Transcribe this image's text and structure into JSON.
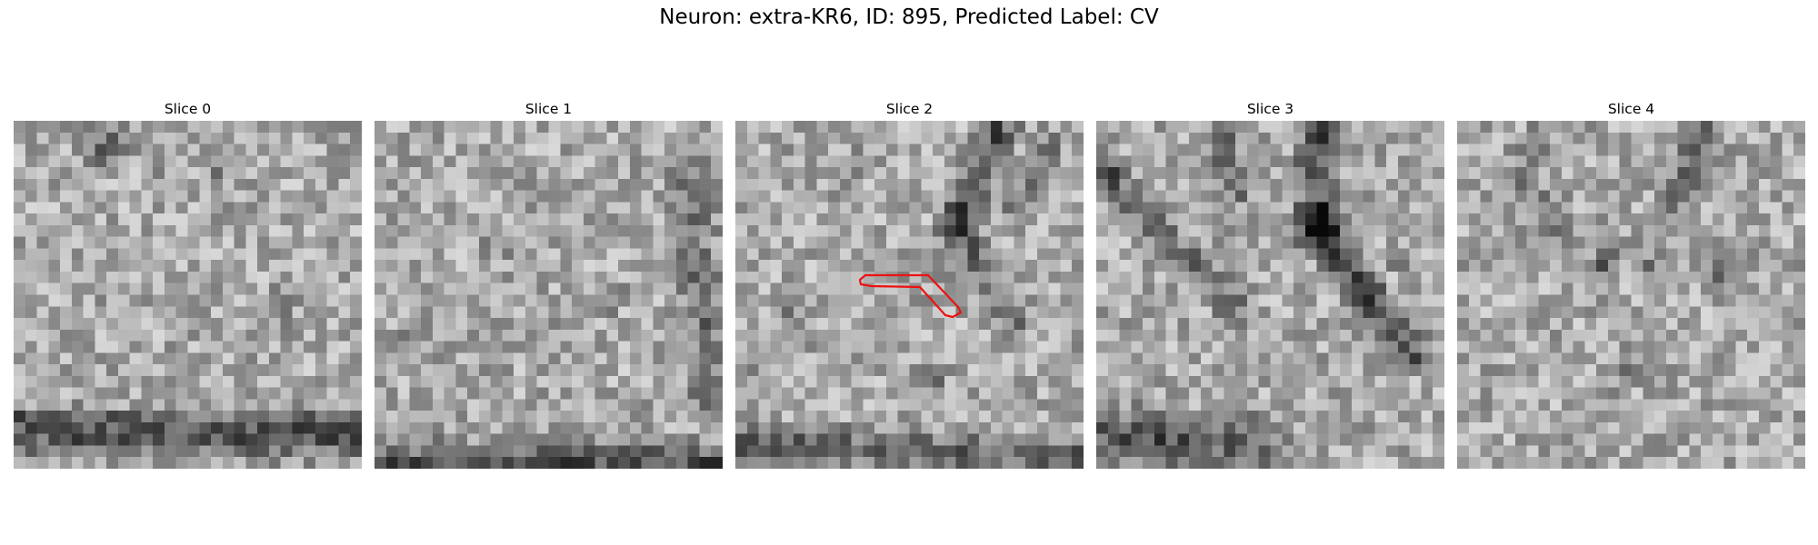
{
  "figure": {
    "title": "Neuron: extra-KR6, ID: 895, Predicted Label: CV"
  },
  "panels": [
    {
      "title": "Slice 0"
    },
    {
      "title": "Slice 1"
    },
    {
      "title": "Slice 2"
    },
    {
      "title": "Slice 3"
    },
    {
      "title": "Slice 4"
    }
  ],
  "colors": {
    "highlight": "#ee1111",
    "background": "#ffffff"
  }
}
